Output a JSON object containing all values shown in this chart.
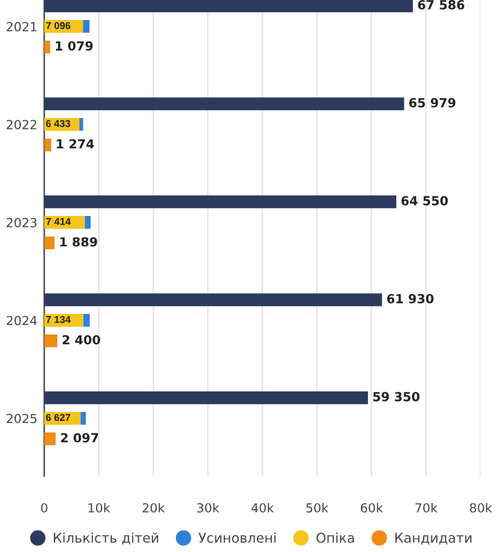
{
  "chart_data": {
    "type": "bar",
    "orientation": "horizontal",
    "categories": [
      "2021",
      "2022",
      "2023",
      "2024",
      "2025"
    ],
    "series": [
      {
        "name": "Кількість дітей",
        "color": "#2d3a5e",
        "values": [
          67586,
          65979,
          64550,
          61930,
          59350
        ],
        "value_labels": [
          "67 586",
          "65 979",
          "64 550",
          "61 930",
          "59 350"
        ]
      },
      {
        "name": "Усиновлені",
        "color": "#2f80d8",
        "values": [
          1200,
          700,
          1100,
          1200,
          1000
        ],
        "base": [
          7096,
          6433,
          7414,
          7134,
          6627
        ]
      },
      {
        "name": "Опіка",
        "color": "#f5c51c",
        "values": [
          7096,
          6433,
          7414,
          7134,
          6627
        ],
        "value_labels": [
          "7 096",
          "6 433",
          "7 414",
          "7 134",
          "6 627"
        ]
      },
      {
        "name": "Кандидати",
        "color": "#f08c14",
        "values": [
          1079,
          1274,
          1889,
          2400,
          2097
        ],
        "value_labels": [
          "1 079",
          "1 274",
          "1 889",
          "2 400",
          "2 097"
        ]
      }
    ],
    "xlim": [
      0,
      80000
    ],
    "xticks": [
      {
        "value": 0,
        "label": "0"
      },
      {
        "value": 10000,
        "label": "10k"
      },
      {
        "value": 20000,
        "label": "20k"
      },
      {
        "value": 30000,
        "label": "30k"
      },
      {
        "value": 40000,
        "label": "40k"
      },
      {
        "value": 50000,
        "label": "50k"
      },
      {
        "value": 60000,
        "label": "60k"
      },
      {
        "value": 70000,
        "label": "70k"
      },
      {
        "value": 80000,
        "label": "80k"
      }
    ],
    "grid": "x",
    "legend": "bottom"
  }
}
